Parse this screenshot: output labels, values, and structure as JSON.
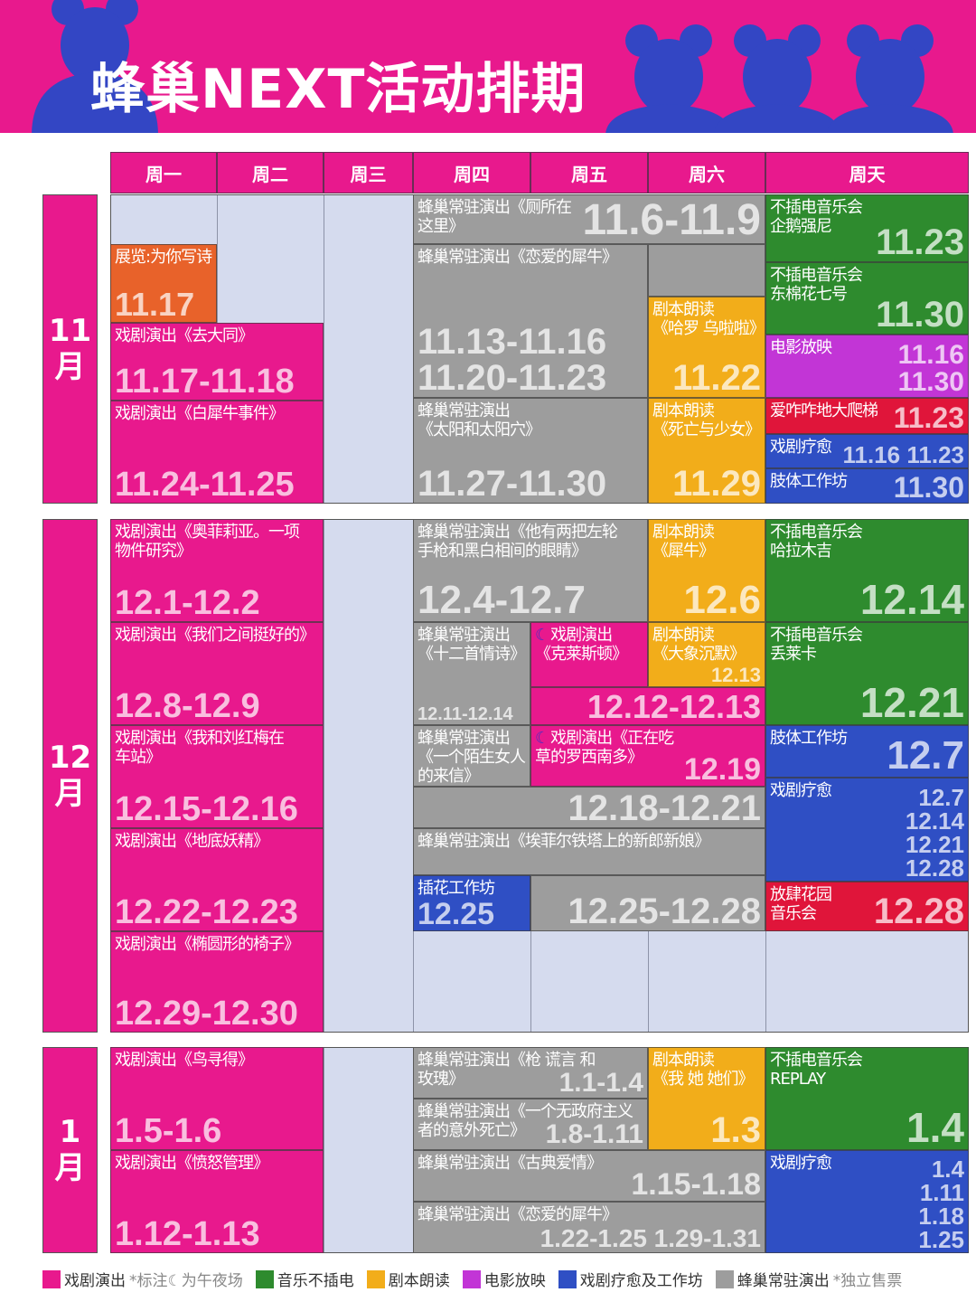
{
  "title": "蜂巢NEXT活动排期",
  "colors": {
    "drama": "#e8198d",
    "music": "#2e8b2e",
    "reading": "#f2ad1a",
    "film": "#c235d6",
    "workshop": "#2f4fc4",
    "resident": "#9d9d9d",
    "party": "#e0153a",
    "expo": "#e8622a",
    "banner_icon": "#3346c4"
  },
  "weekdays": [
    "周一",
    "周二",
    "周三",
    "周四",
    "周五",
    "周六",
    "周天"
  ],
  "months": [
    "11\n月",
    "12\n月",
    "1\n月"
  ],
  "events": [
    {
      "cat": "resident",
      "label": "蜂巢常驻演出《厕所在这里》",
      "date": "11.6-11.9"
    },
    {
      "cat": "resident",
      "label": "蜂巢常驻演出《恋爱的犀牛》",
      "date": "11.13-11.16\n11.20-11.23"
    },
    {
      "cat": "reading",
      "label": "剧本朗读\n《哈罗 乌啦啦》",
      "date": "11.22"
    },
    {
      "cat": "resident",
      "label": "蜂巢常驻演出\n《太阳和太阳穴》",
      "date": "11.27-11.30"
    },
    {
      "cat": "reading",
      "label": "剧本朗读\n《死亡与少女》",
      "date": "11.29"
    },
    {
      "cat": "music",
      "label": "不插电音乐会\n企鹅强尼",
      "date": "11.23"
    },
    {
      "cat": "music",
      "label": "不插电音乐会\n东棉花七号",
      "date": "11.30"
    },
    {
      "cat": "film",
      "label": "电影放映",
      "date": "11.16\n11.30"
    },
    {
      "cat": "party",
      "label": "爱咋咋地大爬梯",
      "date": "11.23"
    },
    {
      "cat": "workshop",
      "label": "戏剧疗愈",
      "date": "11.16 11.23"
    },
    {
      "cat": "workshop",
      "label": "肢体工作坊",
      "date": "11.30"
    },
    {
      "cat": "expo",
      "label": "展览:为你写诗",
      "date": "11.17"
    },
    {
      "cat": "drama",
      "label": "戏剧演出《去大同》",
      "date": "11.17-11.18"
    },
    {
      "cat": "drama",
      "label": "戏剧演出《白犀牛事件》",
      "date": "11.24-11.25"
    },
    {
      "cat": "drama",
      "label": "戏剧演出《奥菲莉亚。一项\n物件研究》",
      "date": "12.1-12.2"
    },
    {
      "cat": "drama",
      "label": "戏剧演出《我们之间挺好的》",
      "date": "12.8-12.9"
    },
    {
      "cat": "drama",
      "label": "戏剧演出《我和刘红梅在\n车站》",
      "date": "12.15-12.16"
    },
    {
      "cat": "drama",
      "label": "戏剧演出《地底妖精》",
      "date": "12.22-12.23"
    },
    {
      "cat": "drama",
      "label": "戏剧演出《椭圆形的椅子》",
      "date": "12.29-12.30"
    },
    {
      "cat": "resident",
      "label": "蜂巢常驻演出《他有两把左轮\n手枪和黑白相间的眼睛》",
      "date": "12.4-12.7"
    },
    {
      "cat": "reading",
      "label": "剧本朗读\n《犀牛》",
      "date": "12.6"
    },
    {
      "cat": "music",
      "label": "不插电音乐会\n哈拉木吉",
      "date": "12.14"
    },
    {
      "cat": "resident",
      "label": "蜂巢常驻演出\n《十二首情诗》",
      "date": "12.11-12.14"
    },
    {
      "cat": "drama",
      "label": "戏剧演出\n《克莱斯顿》",
      "date": "12.12-12.13",
      "midnight": true
    },
    {
      "cat": "reading",
      "label": "剧本朗读\n《大象沉默》",
      "date": "12.13"
    },
    {
      "cat": "music",
      "label": "不插电音乐会\n丢莱卡",
      "date": "12.21"
    },
    {
      "cat": "resident",
      "label": "蜂巢常驻演出\n《一个陌生女人\n的来信》",
      "date": "12.18-12.21"
    },
    {
      "cat": "drama",
      "label": "戏剧演出《正在吃草的罗西南多》",
      "date": "12.19",
      "midnight": true
    },
    {
      "cat": "workshop",
      "label": "肢体工作坊",
      "date": "12.7"
    },
    {
      "cat": "workshop",
      "label": "戏剧疗愈",
      "date": "12.7\n12.14\n12.21\n12.28"
    },
    {
      "cat": "party",
      "label": "放肆花园\n音乐会",
      "date": "12.28"
    },
    {
      "cat": "resident",
      "label": "蜂巢常驻演出《埃菲尔铁塔上的新郎新娘》",
      "date": "12.25-12.28"
    },
    {
      "cat": "workshop",
      "label": "插花工作坊",
      "date": "12.25"
    },
    {
      "cat": "drama",
      "label": "戏剧演出《鸟寻得》",
      "date": "1.5-1.6"
    },
    {
      "cat": "drama",
      "label": "戏剧演出《愤怒管理》",
      "date": "1.12-1.13"
    },
    {
      "cat": "resident",
      "label": "蜂巢常驻演出《枪 谎言 和\n玫瑰》",
      "date": "1.1-1.4"
    },
    {
      "cat": "resident",
      "label": "蜂巢常驻演出《一个无政府主义\n者的意外死亡》",
      "date": "1.8-1.11"
    },
    {
      "cat": "reading",
      "label": "剧本朗读\n《我 她 她们》",
      "date": "1.3"
    },
    {
      "cat": "resident",
      "label": "蜂巢常驻演出《古典爱情》",
      "date": "1.15-1.18"
    },
    {
      "cat": "resident",
      "label": "蜂巢常驻演出《恋爱的犀牛》",
      "date": "1.22-1.25 1.29-1.31"
    },
    {
      "cat": "music",
      "label": "不插电音乐会\nREPLAY",
      "date": "1.4"
    },
    {
      "cat": "workshop",
      "label": "戏剧疗愈",
      "date": "1.4\n1.11\n1.18\n1.25"
    }
  ],
  "legend": [
    {
      "cat": "drama",
      "label": "戏剧演出",
      "note": "*标注☾为午夜场"
    },
    {
      "cat": "music",
      "label": "音乐不插电",
      "note": ""
    },
    {
      "cat": "reading",
      "label": "剧本朗读",
      "note": ""
    },
    {
      "cat": "film",
      "label": "电影放映",
      "note": ""
    },
    {
      "cat": "workshop",
      "label": "戏剧疗愈及工作坊",
      "note": ""
    },
    {
      "cat": "resident",
      "label": "蜂巢常驻演出",
      "note": "*独立售票"
    }
  ]
}
